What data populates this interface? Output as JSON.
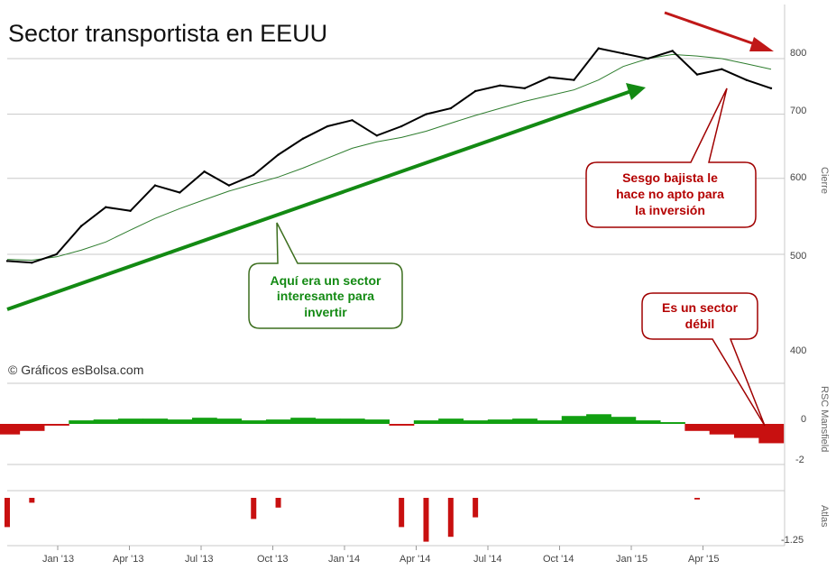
{
  "title": "Sector transportista en EEUU",
  "copyright": "© Gráficos esBolsa.com",
  "colors": {
    "price_line": "#000000",
    "ma_line": "#2e7d2e",
    "grid": "#c8c8c8",
    "rs_positive": "#11a011",
    "rs_negative": "#c81010",
    "trend_up": "#138a13",
    "trend_down": "#c01818",
    "callout_green_border": "#3c6e1e",
    "callout_red_border": "#a00000"
  },
  "axes": {
    "price_axis_name": "Cierre",
    "rs_axis_name": "RSC Mansfield",
    "atlas_axis_name": "Atlas",
    "price_ticks": [
      "800",
      "700",
      "600",
      "500",
      "400"
    ],
    "rs_ticks": [
      "0",
      "-2"
    ],
    "atlas_ticks": [
      "-1.25"
    ],
    "x_ticks": [
      "Jan '13",
      "Apr '13",
      "Jul '13",
      "Oct '13",
      "Jan '14",
      "Apr '14",
      "Jul '14",
      "Oct '14",
      "Jan '15",
      "Apr '15"
    ]
  },
  "callouts": {
    "green": [
      "Aquí era un sector",
      "interesante para",
      "invertir"
    ],
    "red_top": [
      "Sesgo bajista le",
      "hace no apto para",
      "la inversión"
    ],
    "red_bottom": [
      "Es un sector",
      "débil"
    ]
  },
  "chart_data": [
    {
      "type": "line",
      "panel": "price",
      "title": "Sector transportista en EEUU",
      "ylabel": "Cierre",
      "ylim": [
        400,
        880
      ],
      "log_scale": true,
      "grid": true,
      "x": [
        "Nov '12",
        "Dec '12",
        "Jan '13",
        "Feb '13",
        "Mar '13",
        "Apr '13",
        "May '13",
        "Jun '13",
        "Jul '13",
        "Aug '13",
        "Sep '13",
        "Oct '13",
        "Nov '13",
        "Dec '13",
        "Jan '14",
        "Feb '14",
        "Mar '14",
        "Apr '14",
        "May '14",
        "Jun '14",
        "Jul '14",
        "Aug '14",
        "Sep '14",
        "Oct '14",
        "Nov '14",
        "Dec '14",
        "Jan '15",
        "Feb '15",
        "Mar '15",
        "Apr '15",
        "May '15",
        "Jun '15"
      ],
      "series": [
        {
          "name": "",
          "values": [
            492,
            490,
            500,
            535,
            560,
            555,
            590,
            580,
            610,
            590,
            605,
            635,
            660,
            680,
            690,
            665,
            680,
            700,
            710,
            740,
            750,
            745,
            765,
            760,
            820,
            810,
            800,
            815,
            770,
            780,
            760,
            745
          ]
        },
        {
          "name": "",
          "values": [
            494,
            493,
            497,
            505,
            515,
            530,
            545,
            558,
            570,
            582,
            592,
            602,
            615,
            630,
            645,
            655,
            662,
            672,
            685,
            698,
            710,
            722,
            732,
            742,
            760,
            785,
            800,
            808,
            805,
            800,
            790,
            780
          ]
        }
      ]
    },
    {
      "type": "area",
      "panel": "relative_strength",
      "ylabel": "RSC Mansfield",
      "ylim": [
        -2.5,
        1.5
      ],
      "grid": true,
      "x": [
        "Nov '12",
        "Dec '12",
        "Jan '13",
        "Feb '13",
        "Mar '13",
        "Apr '13",
        "May '13",
        "Jun '13",
        "Jul '13",
        "Aug '13",
        "Sep '13",
        "Oct '13",
        "Nov '13",
        "Dec '13",
        "Jan '14",
        "Feb '14",
        "Mar '14",
        "Apr '14",
        "May '14",
        "Jun '14",
        "Jul '14",
        "Aug '14",
        "Sep '14",
        "Oct '14",
        "Nov '14",
        "Dec '14",
        "Jan '15",
        "Feb '15",
        "Mar '15",
        "Apr '15",
        "May '15",
        "Jun '15"
      ],
      "values": [
        -0.6,
        -0.4,
        -0.1,
        0.2,
        0.25,
        0.3,
        0.3,
        0.25,
        0.35,
        0.3,
        0.2,
        0.25,
        0.35,
        0.3,
        0.3,
        0.25,
        -0.1,
        0.2,
        0.3,
        0.2,
        0.25,
        0.3,
        0.2,
        0.45,
        0.55,
        0.4,
        0.2,
        0.1,
        -0.4,
        -0.6,
        -0.8,
        -1.1
      ]
    },
    {
      "type": "bar",
      "panel": "atlas",
      "ylabel": "Atlas",
      "ylim": [
        -1.5,
        0
      ],
      "x": [
        "Nov '12",
        "Dec '12",
        "Jan '13",
        "Feb '13",
        "Mar '13",
        "Apr '13",
        "May '13",
        "Jun '13",
        "Jul '13",
        "Aug '13",
        "Sep '13",
        "Oct '13",
        "Nov '13",
        "Dec '13",
        "Jan '14",
        "Feb '14",
        "Mar '14",
        "Apr '14",
        "May '14",
        "Jun '14",
        "Jul '14",
        "Aug '14",
        "Sep '14",
        "Oct '14",
        "Nov '14",
        "Dec '14",
        "Jan '15",
        "Feb '15",
        "Mar '15",
        "Apr '15",
        "May '15",
        "Jun '15"
      ],
      "values": [
        -0.9,
        -0.15,
        0,
        0,
        0,
        0,
        0,
        0,
        0,
        0,
        -0.65,
        -0.3,
        0,
        0,
        0,
        0,
        -0.9,
        -1.35,
        -1.2,
        -0.6,
        0,
        0,
        0,
        0,
        0,
        0,
        0,
        0,
        -0.05,
        0,
        0,
        0
      ]
    }
  ]
}
